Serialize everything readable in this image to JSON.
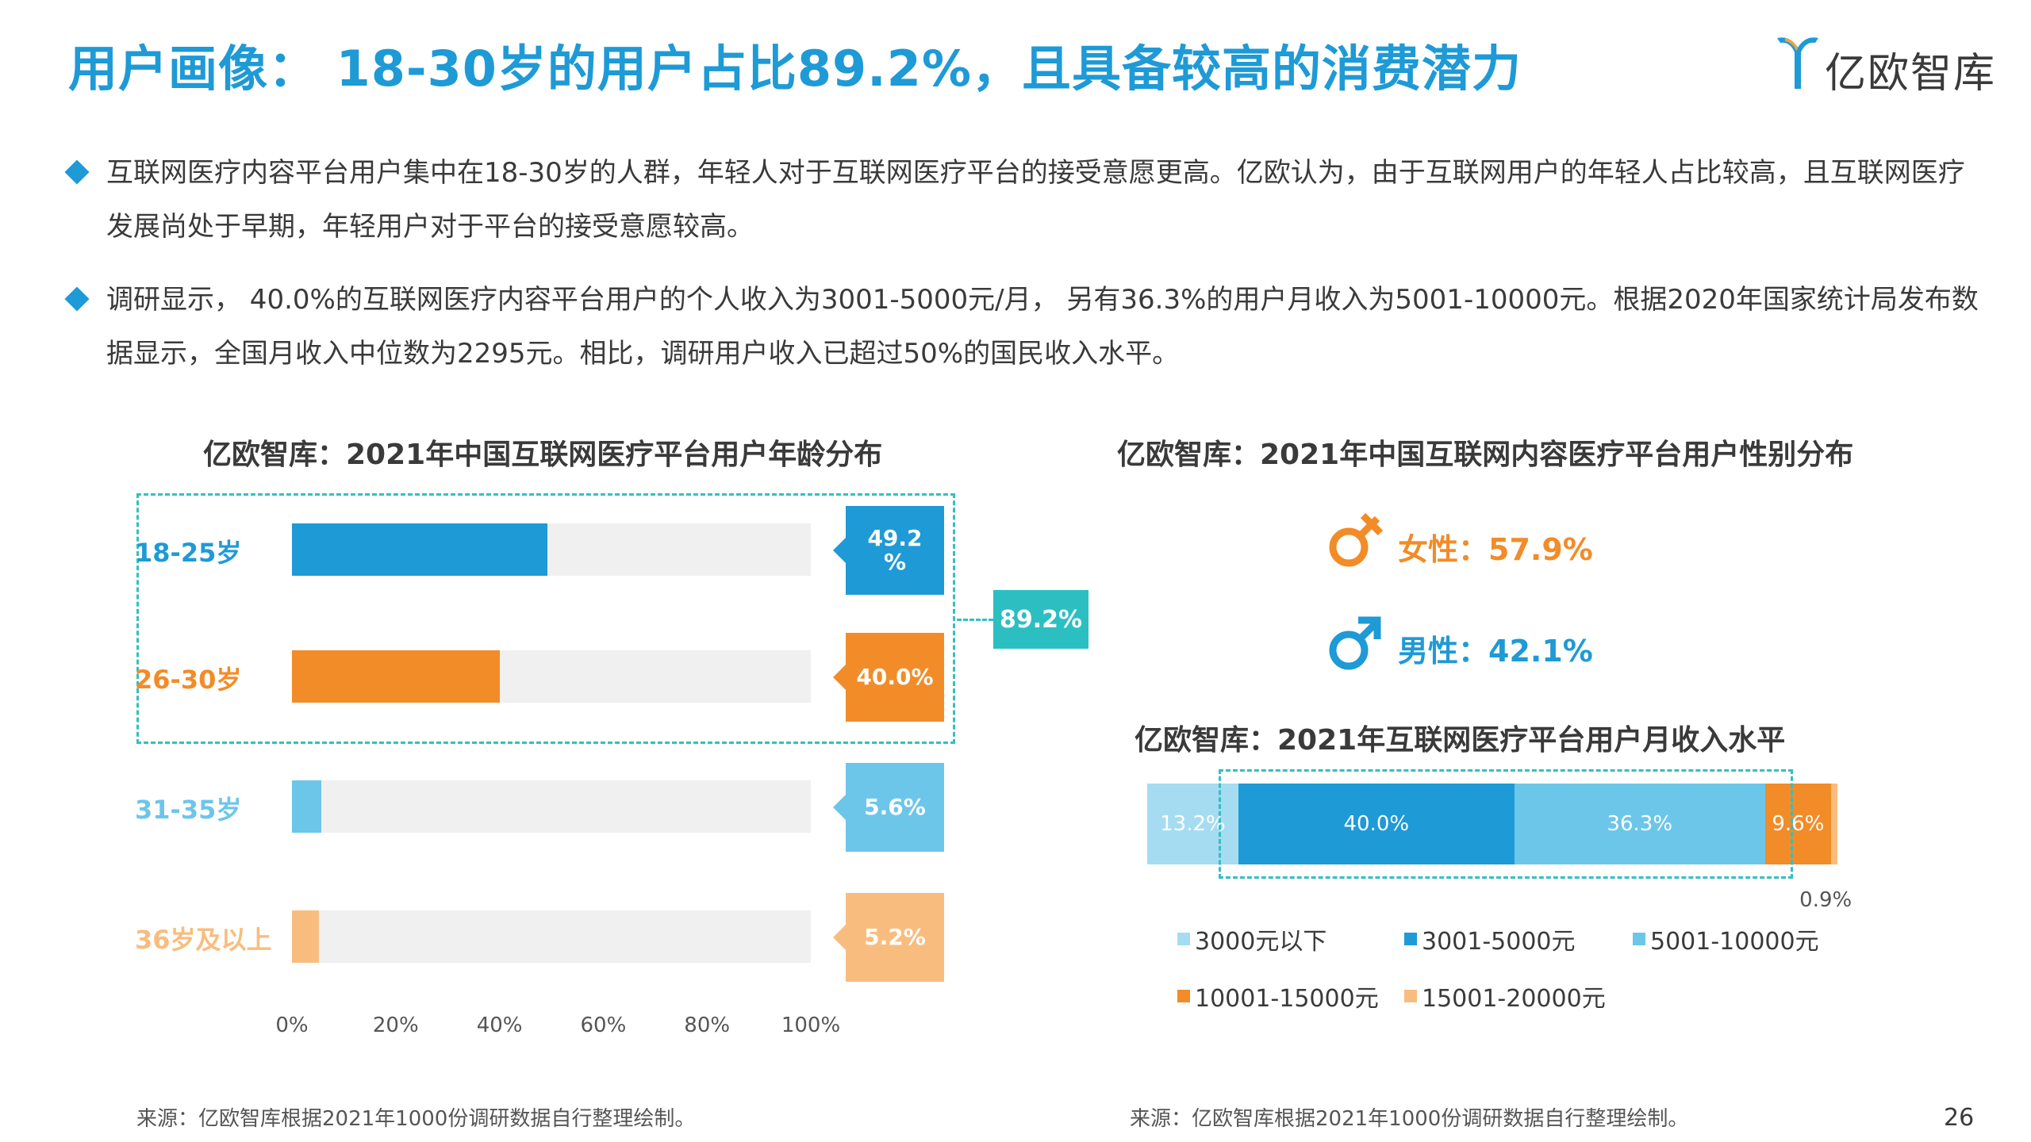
{
  "header": {
    "title": "用户画像： 18-30岁的用户占比89.2%，且具备较高的消费潜力",
    "logo_text": "亿欧智库"
  },
  "bullets": [
    "互联网医疗内容平台用户集中在18-30岁的人群，年轻人对于互联网医疗平台的接受意愿更高。亿欧认为，由于互联网用户的年轻人占比较高，且互联网医疗发展尚处于早期，年轻用户对于平台的接受意愿较高。",
    "调研显示， 40.0%的互联网医疗内容平台用户的个人收入为3001-5000元/月， 另有36.3%的用户月收入为5001-10000元。根据2020年国家统计局发布数据显示，全国月收入中位数为2295元。相比，调研用户收入已超过50%的国民收入水平。"
  ],
  "colors": {
    "accent": "#1e9ad6",
    "teal": "#2bbfc2",
    "orange": "#f28c28",
    "light_blue": "#6cc6ea",
    "peach": "#f8bd7e",
    "very_light_blue": "#a6dcf1"
  },
  "chart_data": [
    {
      "type": "bar",
      "title": "亿欧智库：2021年中国互联网医疗平台用户年龄分布",
      "categories": [
        "18-25岁",
        "26-30岁",
        "31-35岁",
        "36岁及以上"
      ],
      "values": [
        49.2,
        40.0,
        5.6,
        5.2
      ],
      "value_labels": [
        "49.2\n%",
        "40.0%",
        "5.6%",
        "5.2%"
      ],
      "colors": [
        "#1e9ad6",
        "#f28c28",
        "#6cc6ea",
        "#f8bd7e"
      ],
      "xlim": [
        0,
        100
      ],
      "x_ticks": [
        "0%",
        "20%",
        "40%",
        "60%",
        "80%",
        "100%"
      ],
      "highlight_label": "89.2%"
    },
    {
      "type": "table",
      "title": "亿欧智库：2021年中国互联网内容医疗平台用户性别分布",
      "rows": [
        {
          "label": "女性：57.9%",
          "value": 57.9,
          "icon": "female-symbol-icon",
          "color": "#f28c28"
        },
        {
          "label": "男性：42.1%",
          "value": 42.1,
          "icon": "male-symbol-icon",
          "color": "#1e9ad6"
        }
      ]
    },
    {
      "type": "bar",
      "title": "亿欧智库：2021年互联网医疗平台用户月收入水平",
      "stacked": true,
      "series": [
        {
          "name": "3000元以下",
          "value": 13.2,
          "label": "13.2%",
          "color": "#a6dcf1"
        },
        {
          "name": "3001-5000元",
          "value": 40.0,
          "label": "40.0%",
          "color": "#1e9ad6"
        },
        {
          "name": "5001-10000元",
          "value": 36.3,
          "label": "36.3%",
          "color": "#6cc6ea"
        },
        {
          "name": "10001-15000元",
          "value": 9.6,
          "label": "9.6%",
          "color": "#f28c28"
        },
        {
          "name": "15001-20000元",
          "value": 0.9,
          "label": "0.9%",
          "color": "#f8bd7e"
        }
      ]
    }
  ],
  "sources": {
    "left": "来源：亿欧智库根据2021年1000份调研数据自行整理绘制。",
    "right": "来源：亿欧智库根据2021年1000份调研数据自行整理绘制。"
  },
  "page_number": "26"
}
